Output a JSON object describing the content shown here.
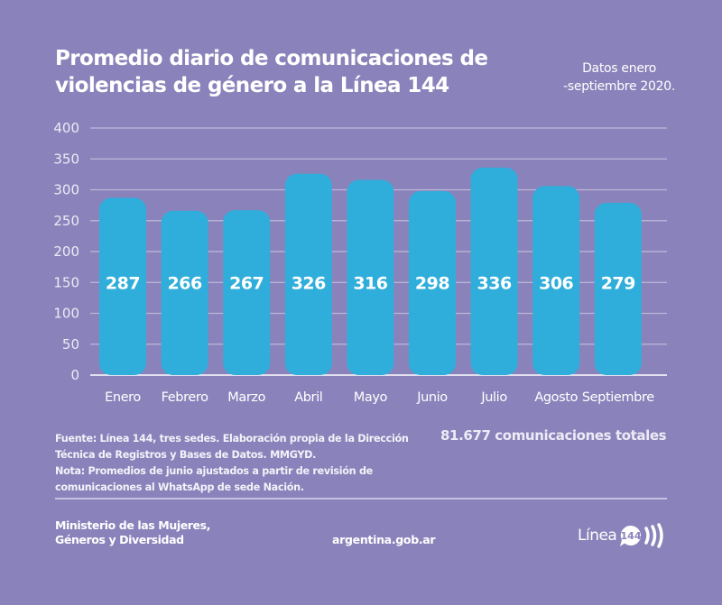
{
  "header": {
    "title_line1": "Promedio diario de comunicaciones de",
    "title_line2": "violencias de género a la Línea 144",
    "subtitle_line1": "Datos enero",
    "subtitle_line2": "-septiembre 2020."
  },
  "colors": {
    "background": "#8a82ba",
    "bar": "#30aedb",
    "gridline": "#bdb8da",
    "text": "#ffffff"
  },
  "chart_data": {
    "type": "bar",
    "title": "Promedio diario de comunicaciones de violencias de género a la Línea 144",
    "xlabel": "",
    "ylabel": "",
    "categories": [
      "Enero",
      "Febrero",
      "Marzo",
      "Abril",
      "Mayo",
      "Junio",
      "Julio",
      "Agosto",
      "Septiembre"
    ],
    "values": [
      287,
      266,
      267,
      326,
      316,
      298,
      336,
      306,
      279
    ],
    "data_labels": [
      "287",
      "266",
      "267",
      "326",
      "316",
      "298",
      "336",
      "306",
      "279"
    ],
    "ylim": [
      0,
      400
    ],
    "yticks": [
      0,
      50,
      100,
      150,
      200,
      250,
      300,
      350,
      400
    ],
    "ytick_labels": [
      "0",
      "50",
      "100",
      "150",
      "200",
      "250",
      "300",
      "350",
      "400"
    ],
    "grid": true,
    "legend": "none"
  },
  "notes": {
    "source_line1": "Fuente: Línea 144, tres sedes. Elaboración propia de la Dirección",
    "source_line2": "Técnica de Registros y Bases de Datos. MMGYD.",
    "note_line1": "Nota: Promedios de junio ajustados a partir de revisión de",
    "note_line2": "comunicaciones al WhatsApp de sede Nación.",
    "total": "81.677 comunicaciones totales"
  },
  "footer": {
    "ministry_line1": "Ministerio de las Mujeres,",
    "ministry_line2": "Géneros y Diversidad",
    "website": "argentina.gob.ar",
    "logo_text": "Línea",
    "logo_number": "144"
  }
}
